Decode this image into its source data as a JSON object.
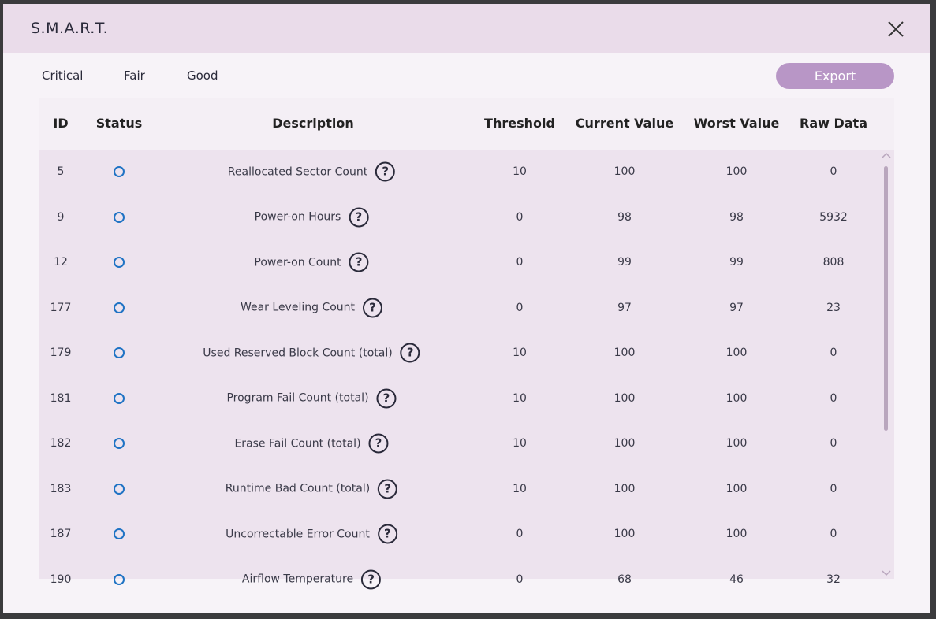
{
  "dialog": {
    "title": "S.M.A.R.T.",
    "export": "Export",
    "legend": [
      {
        "name": "Critical",
        "color": "#c0394f"
      },
      {
        "name": "Fair",
        "color": "#e8a73c"
      },
      {
        "name": "Good",
        "color": "#1f73c4"
      }
    ],
    "table": {
      "headers": [
        "ID",
        "Status",
        "Description",
        "Threshold",
        "Current Value",
        "Worst Value",
        "Raw Data"
      ],
      "rows": [
        {
          "id": 5,
          "status": "Good",
          "description": "Reallocated Sector Count",
          "threshold": 10,
          "current": 100,
          "worst": 100,
          "raw": 0
        },
        {
          "id": 9,
          "status": "Good",
          "description": "Power-on Hours",
          "threshold": 0,
          "current": 98,
          "worst": 98,
          "raw": 5932
        },
        {
          "id": 12,
          "status": "Good",
          "description": "Power-on Count",
          "threshold": 0,
          "current": 99,
          "worst": 99,
          "raw": 808
        },
        {
          "id": 177,
          "status": "Good",
          "description": "Wear Leveling Count",
          "threshold": 0,
          "current": 97,
          "worst": 97,
          "raw": 23
        },
        {
          "id": 179,
          "status": "Good",
          "description": "Used Reserved Block Count (total)",
          "threshold": 10,
          "current": 100,
          "worst": 100,
          "raw": 0
        },
        {
          "id": 181,
          "status": "Good",
          "description": "Program Fail Count (total)",
          "threshold": 10,
          "current": 100,
          "worst": 100,
          "raw": 0
        },
        {
          "id": 182,
          "status": "Good",
          "description": "Erase Fail Count (total)",
          "threshold": 10,
          "current": 100,
          "worst": 100,
          "raw": 0
        },
        {
          "id": 183,
          "status": "Good",
          "description": "Runtime Bad Count (total)",
          "threshold": 10,
          "current": 100,
          "worst": 100,
          "raw": 0
        },
        {
          "id": 187,
          "status": "Good",
          "description": "Uncorrectable Error Count",
          "threshold": 0,
          "current": 100,
          "worst": 100,
          "raw": 0
        },
        {
          "id": 190,
          "status": "Good",
          "description": "Airflow Temperature",
          "threshold": 0,
          "current": 68,
          "worst": 46,
          "raw": 32
        }
      ]
    }
  }
}
